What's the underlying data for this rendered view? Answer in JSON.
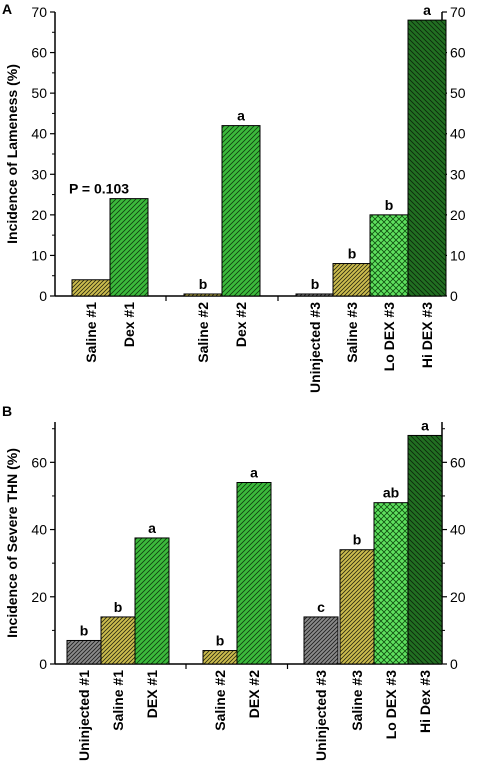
{
  "chart_data": [
    {
      "type": "bar",
      "panel": "A",
      "ylabel": "Incidence of Lameness (%)",
      "ylim": [
        0,
        70
      ],
      "yticks": [
        0,
        10,
        20,
        30,
        40,
        50,
        60,
        70
      ],
      "right_axis_ticks": true,
      "grid": false,
      "annotations": [
        "P = 0.103"
      ],
      "groups": [
        {
          "categories": [
            "Saline #1",
            "Dex #1"
          ],
          "values": [
            4,
            24
          ],
          "labels": [
            "",
            "P = 0.103"
          ],
          "patterns": [
            "saline",
            "dex"
          ]
        },
        {
          "categories": [
            "Saline #2",
            "Dex #2"
          ],
          "values": [
            0.5,
            42
          ],
          "labels": [
            "b",
            "a"
          ],
          "patterns": [
            "saline",
            "dex"
          ]
        },
        {
          "categories": [
            "Uninjected #3",
            "Saline #3",
            "Lo DEX #3",
            "Hi DEX #3"
          ],
          "values": [
            0.5,
            8,
            20,
            68
          ],
          "labels": [
            "b",
            "b",
            "b",
            "a"
          ],
          "patterns": [
            "uninjected",
            "saline",
            "lodex",
            "hidex"
          ]
        }
      ]
    },
    {
      "type": "bar",
      "panel": "B",
      "ylabel": "Incidence of Severe THN (%)",
      "ylim": [
        0,
        72
      ],
      "yticks": [
        0,
        20,
        40,
        60
      ],
      "right_axis_ticks": true,
      "grid": false,
      "groups": [
        {
          "categories": [
            "Uninjected #1",
            "Saline #1",
            "DEX #1"
          ],
          "values": [
            7,
            14,
            37.5
          ],
          "labels": [
            "b",
            "b",
            "a"
          ],
          "patterns": [
            "uninjected",
            "saline",
            "dex"
          ]
        },
        {
          "categories": [
            "Saline #2",
            "DEX #2"
          ],
          "values": [
            4,
            54
          ],
          "labels": [
            "b",
            "a"
          ],
          "patterns": [
            "saline",
            "dex"
          ]
        },
        {
          "categories": [
            "Uninjected #3",
            "Saline #3",
            "Lo DEX #3",
            "Hi Dex #3"
          ],
          "values": [
            14,
            34,
            48,
            68
          ],
          "labels": [
            "c",
            "b",
            "ab",
            "a"
          ],
          "patterns": [
            "uninjected",
            "saline",
            "lodex",
            "hidex"
          ]
        }
      ]
    }
  ],
  "colors": {
    "uninjected": "#7a7a7a",
    "saline": "#c8b84a",
    "dex": "#3cba3c",
    "lodex": "#5ee05e",
    "hidex": "#1f6b1f"
  }
}
